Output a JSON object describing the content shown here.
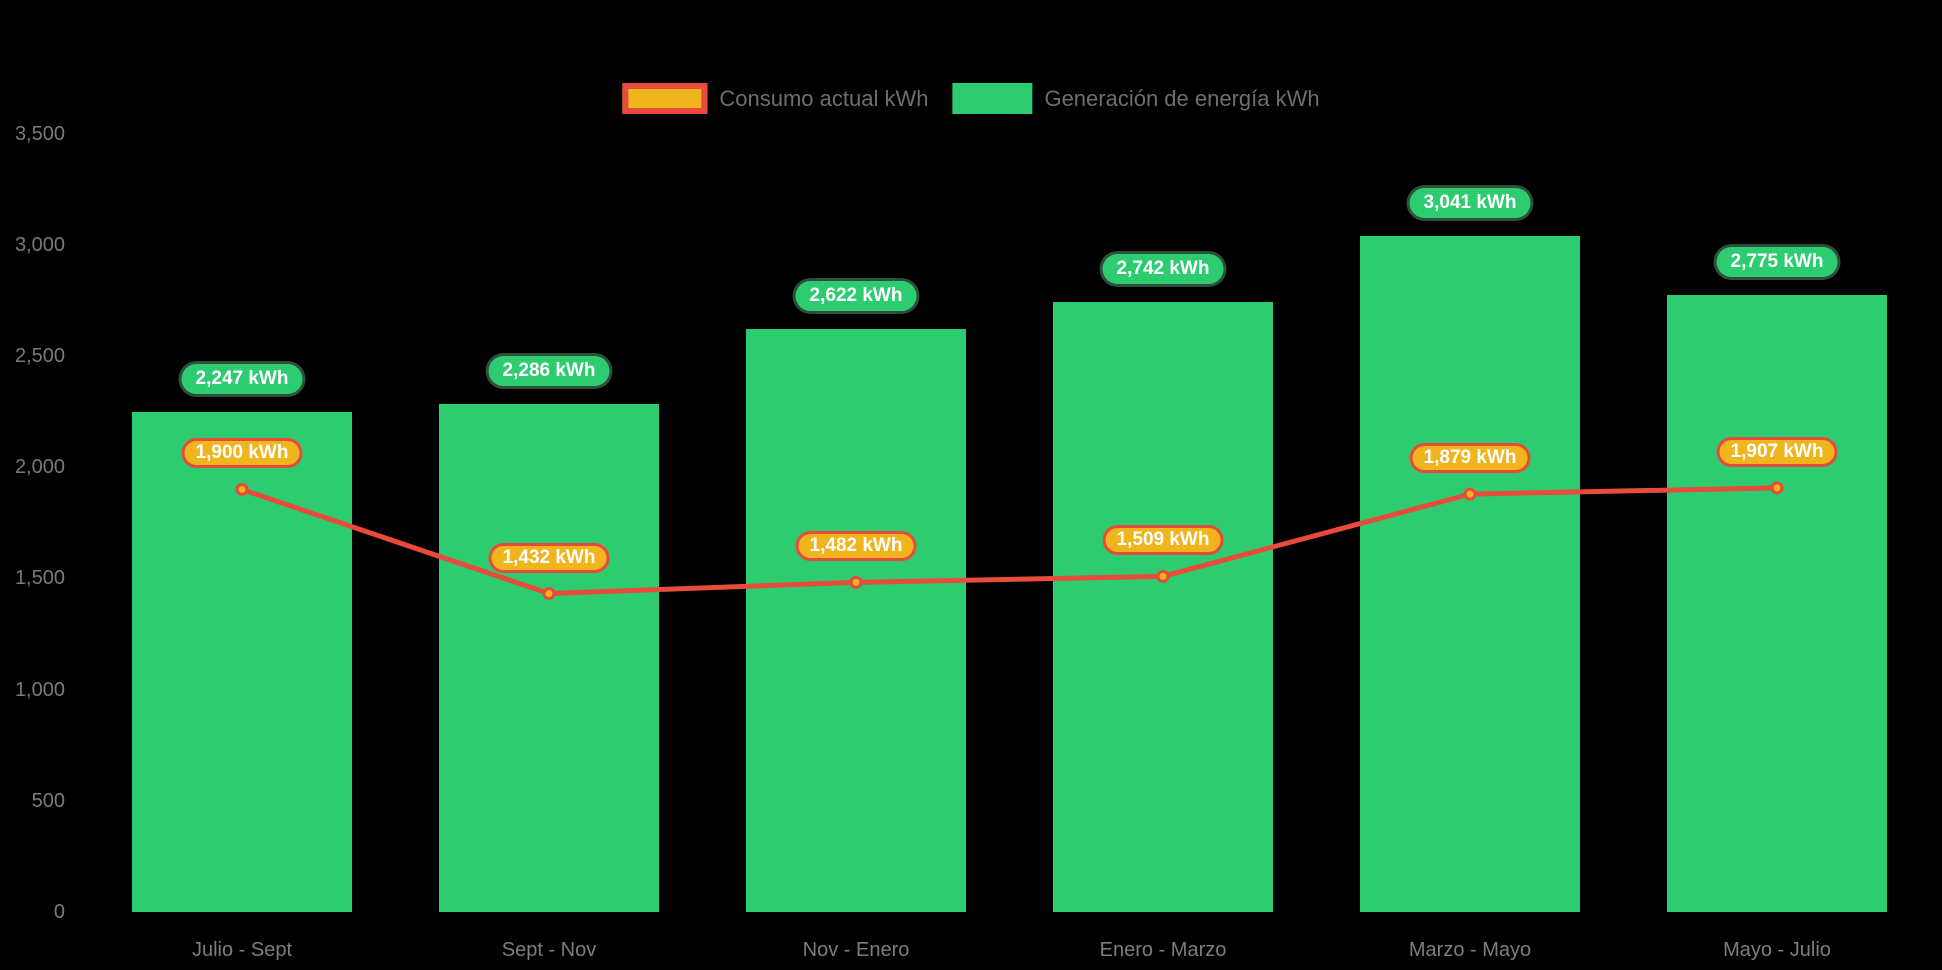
{
  "page": {
    "background": "#000000"
  },
  "legend": {
    "items": [
      {
        "label": "Consumo actual kWh",
        "swatch": "line-swatch",
        "fill": "#f0b41c",
        "border": "#e84a3c"
      },
      {
        "label": "Generación de energía kWh",
        "swatch": "bar-swatch",
        "fill": "#2ecc71"
      }
    ]
  },
  "chart_data": {
    "type": "bar",
    "subtype": "bar-line-combo",
    "title": "",
    "xlabel": "",
    "ylabel": "",
    "categories": [
      "Julio - Sept",
      "Sept - Nov",
      "Nov - Enero",
      "Enero - Marzo",
      "Marzo - Mayo",
      "Mayo - Julio"
    ],
    "series": [
      {
        "name": "Generación de energía kWh",
        "type": "bar",
        "color": "#2ecc71",
        "values": [
          2247,
          2286,
          2622,
          2742,
          3041,
          2775
        ],
        "data_labels": [
          "2,247 kWh",
          "2,286 kWh",
          "2,622 kWh",
          "2,742 kWh",
          "3,041 kWh",
          "2,775 kWh"
        ]
      },
      {
        "name": "Consumo actual kWh",
        "type": "line",
        "color": "#e84a3c",
        "point_fill": "#f0b41c",
        "point_stroke": "#e84a3c",
        "values": [
          1900,
          1432,
          1482,
          1509,
          1879,
          1907
        ],
        "data_labels": [
          "1,900 kWh",
          "1,432 kWh",
          "1,482 kWh",
          "1,509 kWh",
          "1,879 kWh",
          "1,907 kWh"
        ]
      }
    ],
    "yticks": {
      "values": [
        0,
        500,
        1000,
        1500,
        2000,
        2500,
        3000,
        3500
      ],
      "labels": [
        "0",
        "500",
        "1,000",
        "1,500",
        "2,000",
        "2,500",
        "3,000",
        "3,500"
      ]
    },
    "ylim": [
      0,
      3650
    ],
    "grid": false,
    "legend_position": "top-center",
    "background": "#000000",
    "axis_text_color": "#7a7a7a",
    "legend_text_color": "#6e6e6e",
    "data_label_text_color": "#ffffff"
  }
}
